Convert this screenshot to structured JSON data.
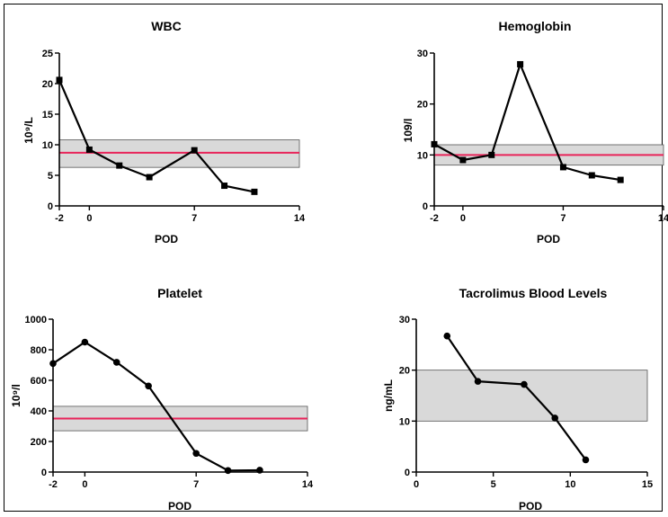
{
  "chart_data": [
    {
      "type": "line",
      "title": "WBC",
      "xlabel": "POD",
      "ylabel": "10⁹/L",
      "xlim": [
        -2,
        14
      ],
      "ylim": [
        0,
        25
      ],
      "xticks": [
        -2,
        0,
        7,
        14
      ],
      "yticks": [
        0,
        5,
        10,
        15,
        20,
        25
      ],
      "marker": "square",
      "x": [
        -2,
        0,
        2,
        4,
        7,
        9,
        11
      ],
      "y": [
        20.6,
        9.2,
        6.6,
        4.7,
        9.1,
        3.3,
        2.3
      ],
      "reference_band": [
        6.3,
        10.8
      ],
      "reference_line": 8.7,
      "band_color": "#d9d9d9",
      "line_color": "#e8245a"
    },
    {
      "type": "line",
      "title": "Hemoglobin",
      "xlabel": "POD",
      "ylabel": "109/l",
      "xlim": [
        -2,
        14
      ],
      "ylim": [
        0,
        30
      ],
      "xticks": [
        -2,
        0,
        7,
        14
      ],
      "yticks": [
        0,
        10,
        20,
        30
      ],
      "marker": "square",
      "x": [
        -2,
        0,
        2,
        4,
        7,
        9,
        11
      ],
      "y": [
        12.1,
        9.0,
        10.0,
        27.8,
        7.6,
        6.0,
        5.1
      ],
      "reference_band": [
        8.0,
        12.0
      ],
      "reference_line": 10.0,
      "band_color": "#d9d9d9",
      "line_color": "#e8245a"
    },
    {
      "type": "line",
      "title": "Platelet",
      "xlabel": "POD",
      "ylabel": "10⁹/l",
      "xlim": [
        -2,
        14
      ],
      "ylim": [
        0,
        1000
      ],
      "xticks": [
        -2,
        0,
        7,
        14
      ],
      "yticks": [
        0,
        200,
        400,
        600,
        800,
        1000
      ],
      "marker": "circle",
      "x": [
        -2,
        0,
        2,
        4,
        7,
        9,
        11
      ],
      "y": [
        710,
        850,
        718,
        563,
        122,
        10,
        12
      ],
      "reference_band": [
        270,
        430
      ],
      "reference_line": 350,
      "band_color": "#d9d9d9",
      "line_color": "#e8245a"
    },
    {
      "type": "line",
      "title": "Tacrolimus Blood Levels",
      "xlabel": "POD",
      "ylabel": "ng/mL",
      "xlim": [
        0,
        15
      ],
      "ylim": [
        0,
        30
      ],
      "xticks": [
        0,
        5,
        10,
        15
      ],
      "yticks": [
        0,
        10,
        20,
        30
      ],
      "marker": "circle",
      "x": [
        2,
        4,
        7,
        9,
        11
      ],
      "y": [
        26.7,
        17.8,
        17.2,
        10.6,
        2.4
      ],
      "reference_band": [
        10,
        20
      ],
      "reference_line": null,
      "band_color": "#d9d9d9",
      "line_color": "#e8245a"
    }
  ]
}
